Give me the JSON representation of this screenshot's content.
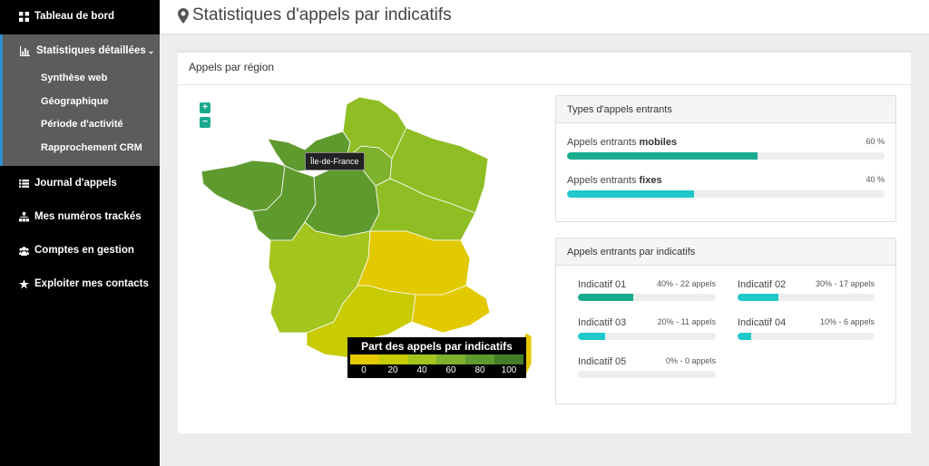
{
  "sidebar": {
    "dashboard": "Tableau de bord",
    "stats": "Statistiques détaillées",
    "subitems": [
      "Synthèse web",
      "Géographique",
      "Période d'activité",
      "Rapprochement CRM"
    ],
    "journal": "Journal d'appels",
    "numbers": "Mes numéros trackés",
    "accounts": "Comptes en gestion",
    "contacts": "Exploiter mes contacts"
  },
  "header": {
    "title": "Statistiques d'appels par indicatifs"
  },
  "card": {
    "title": "Appels par région"
  },
  "map": {
    "zoom_in": "+",
    "zoom_out": "−",
    "tooltip": "Île-de-France",
    "legend_title": "Part des appels par indicatifs",
    "legend_colors": [
      "#e3c900",
      "#c7cb00",
      "#a4c41e",
      "#7fb22c",
      "#5f9a2e",
      "#457d27"
    ],
    "legend_ticks": [
      "0",
      "20",
      "40",
      "60",
      "80",
      "100"
    ]
  },
  "types": {
    "title": "Types d'appels entrants",
    "items": [
      {
        "prefix": "Appels entrants",
        "bold": "mobiles",
        "pct": "60 %",
        "value": 0.6,
        "color": "#1aaa8e"
      },
      {
        "prefix": "Appels entrants",
        "bold": "fixes",
        "pct": "40 %",
        "value": 0.4,
        "color": "#1fc8c9"
      }
    ]
  },
  "indicatifs": {
    "title": "Appels entrants par indicatifs",
    "items": [
      {
        "label": "Indicatif 01",
        "stat": "40% - 22 appels",
        "value": 0.4,
        "color": "#1aaa8e"
      },
      {
        "label": "Indicatif 02",
        "stat": "30% - 17 appels",
        "value": 0.3,
        "color": "#1fc8c9"
      },
      {
        "label": "Indicatif 03",
        "stat": "20% - 11 appels",
        "value": 0.2,
        "color": "#1fc8c9"
      },
      {
        "label": "Indicatif 04",
        "stat": "10% - 6 appels",
        "value": 0.1,
        "color": "#1fc8c9"
      },
      {
        "label": "Indicatif 05",
        "stat": "0% - 0 appels",
        "value": 0.0,
        "color": "#1fc8c9"
      }
    ]
  }
}
